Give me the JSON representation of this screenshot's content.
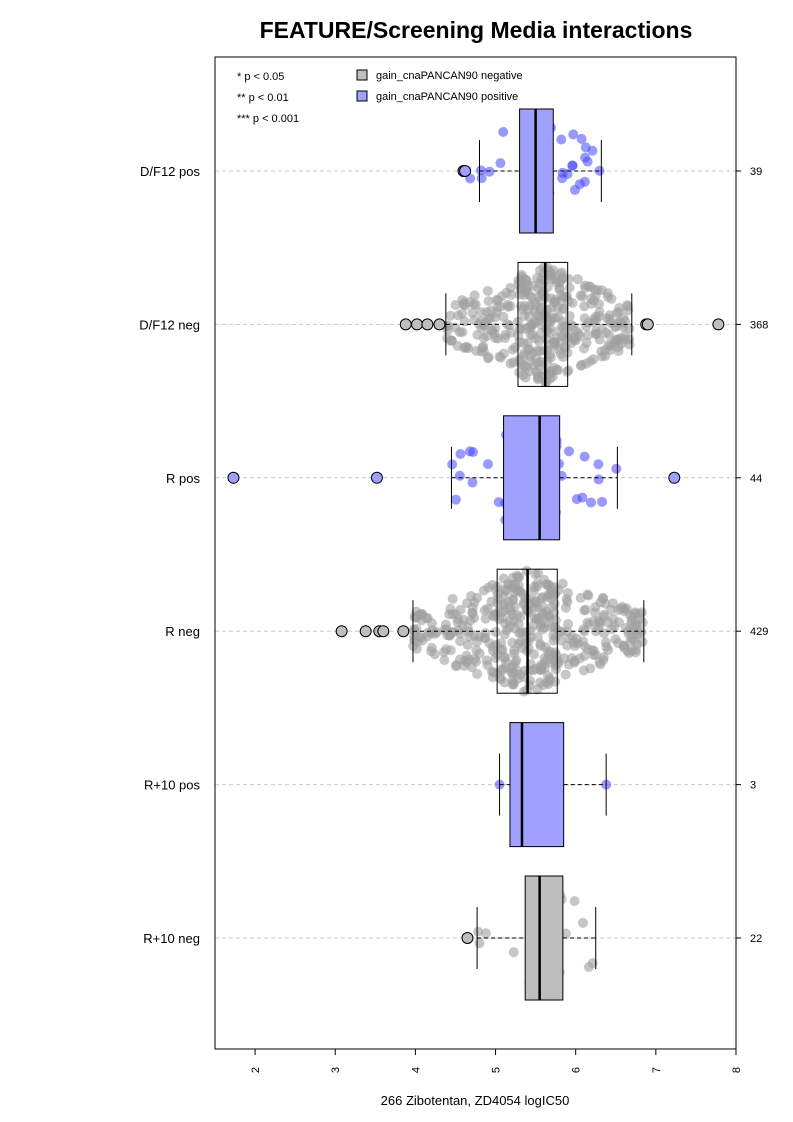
{
  "chart_data": {
    "type": "box",
    "title": "FEATURE/Screening Media interactions",
    "xlabel": "266 Zibotentan, ZD4054 logIC50",
    "xlim": [
      1.5,
      8.0
    ],
    "x_ticks": [
      "2",
      "3",
      "4",
      "5",
      "6",
      "7",
      "8"
    ],
    "orientation": "horizontal",
    "significance_legend": [
      "* p < 0.05",
      "** p < 0.01",
      "*** p < 0.001"
    ],
    "series": [
      {
        "name": "gain_cnaPANCAN90 negative",
        "color": "#BEBEBE"
      },
      {
        "name": "gain_cnaPANCAN90 positive",
        "color": "#A0A0FF"
      }
    ],
    "groups": [
      {
        "label": "D/F12 pos",
        "count": "39",
        "series": "gain_cnaPANCAN90 positive",
        "q1": 5.3,
        "median": 5.5,
        "q3": 5.72,
        "whisker_low": 4.8,
        "whisker_high": 6.32,
        "outliers": [
          4.6,
          4.62
        ],
        "spread_min": 4.62,
        "spread_max": 6.3
      },
      {
        "label": "D/F12 neg",
        "count": "368",
        "series": "gain_cnaPANCAN90 negative",
        "q1": 5.28,
        "median": 5.62,
        "q3": 5.9,
        "whisker_low": 4.38,
        "whisker_high": 6.7,
        "outliers": [
          3.88,
          4.02,
          4.15,
          4.3,
          6.88,
          6.9,
          7.78
        ],
        "spread_min": 4.38,
        "spread_max": 6.7
      },
      {
        "label": "R pos",
        "count": "44",
        "series": "gain_cnaPANCAN90 positive",
        "q1": 5.1,
        "median": 5.55,
        "q3": 5.8,
        "whisker_low": 4.45,
        "whisker_high": 6.52,
        "outliers": [
          1.73,
          3.52,
          7.23
        ],
        "spread_min": 4.45,
        "spread_max": 6.52
      },
      {
        "label": "R neg",
        "count": "429",
        "series": "gain_cnaPANCAN90 negative",
        "q1": 5.02,
        "median": 5.4,
        "q3": 5.77,
        "whisker_low": 3.97,
        "whisker_high": 6.85,
        "outliers": [
          3.08,
          3.38,
          3.55,
          3.6,
          3.85
        ],
        "spread_min": 3.97,
        "spread_max": 6.85
      },
      {
        "label": "R+10 pos",
        "count": "3",
        "series": "gain_cnaPANCAN90 positive",
        "q1": 5.18,
        "median": 5.33,
        "q3": 5.85,
        "whisker_low": 5.05,
        "whisker_high": 6.38,
        "points": [
          5.05,
          5.33,
          6.38
        ]
      },
      {
        "label": "R+10 neg",
        "count": "22",
        "series": "gain_cnaPANCAN90 negative",
        "q1": 5.37,
        "median": 5.55,
        "q3": 5.84,
        "whisker_low": 4.77,
        "whisker_high": 6.25,
        "outliers": [
          4.65
        ],
        "spread_min": 4.77,
        "spread_max": 6.25
      }
    ]
  }
}
